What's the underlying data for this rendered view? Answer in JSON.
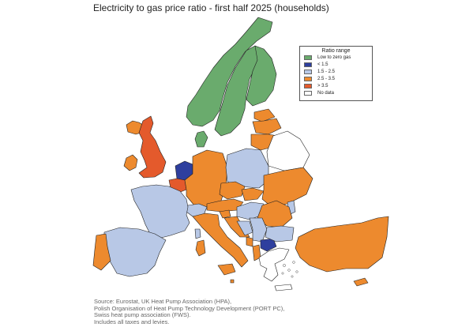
{
  "title": "Electricity to gas price ratio - first half 2025 (households)",
  "legend": {
    "title": "Ratio range",
    "items": [
      {
        "key": "green",
        "label": "Low to zero gas",
        "color": "#6aab6d"
      },
      {
        "key": "blue",
        "label": "< 1.5",
        "color": "#2e3f9e"
      },
      {
        "key": "lightblue",
        "label": "1.5 - 2.5",
        "color": "#b8c8e6"
      },
      {
        "key": "orange",
        "label": "2.5 - 3.5",
        "color": "#ed8a2e"
      },
      {
        "key": "red",
        "label": "> 3.5",
        "color": "#e45a2c"
      },
      {
        "key": "white",
        "label": "No data",
        "color": "#ffffff"
      }
    ]
  },
  "source": [
    "Source: Eurostat, UK Heat Pump Association (HPA),",
    "Polish Organisation of Heat Pump Technology Development (PORT PC),",
    "Swiss heat pump association (FWS).",
    "Includes all taxes and levies."
  ]
}
